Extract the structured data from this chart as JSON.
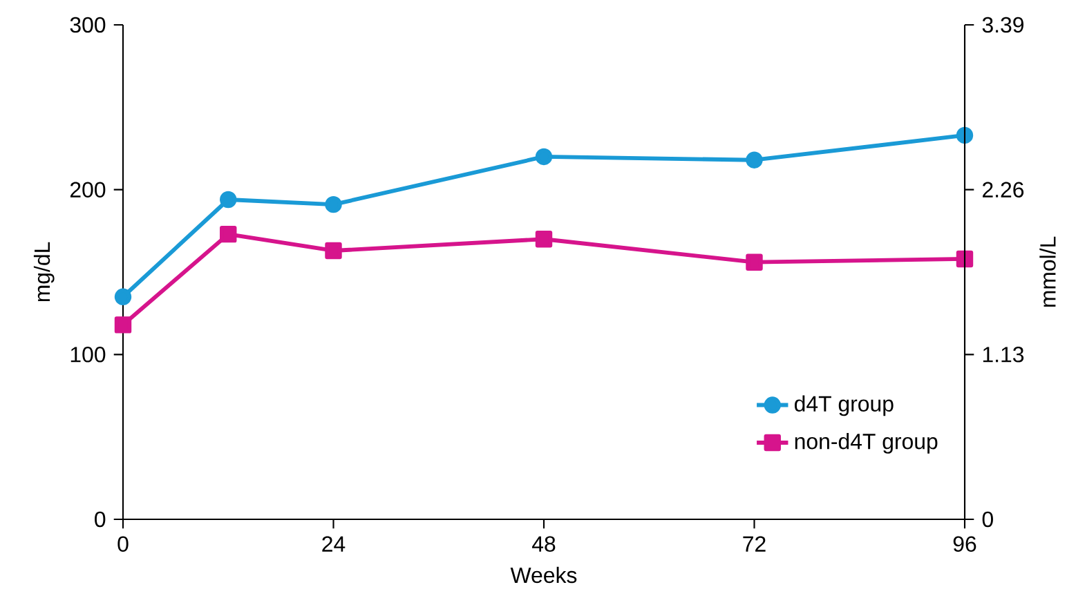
{
  "chart_data": {
    "type": "line",
    "xlabel": "Weeks",
    "ylabel": "mg/dL",
    "y2label": "mmol/L",
    "x": [
      0,
      12,
      24,
      48,
      72,
      96
    ],
    "series": [
      {
        "name": "d4T group",
        "color": "#1a9ad6",
        "marker": "circle",
        "values": [
          135,
          194,
          191,
          220,
          218,
          233
        ]
      },
      {
        "name": "non-d4T group",
        "color": "#d6148c",
        "marker": "square",
        "values": [
          118,
          173,
          163,
          170,
          156,
          158
        ]
      }
    ],
    "xlim": [
      0,
      96
    ],
    "xticks": [
      0,
      24,
      48,
      72,
      96
    ],
    "ylim": [
      0,
      300
    ],
    "yticks": [
      0,
      100,
      200,
      300
    ],
    "y2lim": [
      0,
      3.39
    ],
    "y2ticks": [
      0,
      1.13,
      2.26,
      3.39
    ],
    "grid": false,
    "legend": "bottom right",
    "line_style": "solid"
  }
}
